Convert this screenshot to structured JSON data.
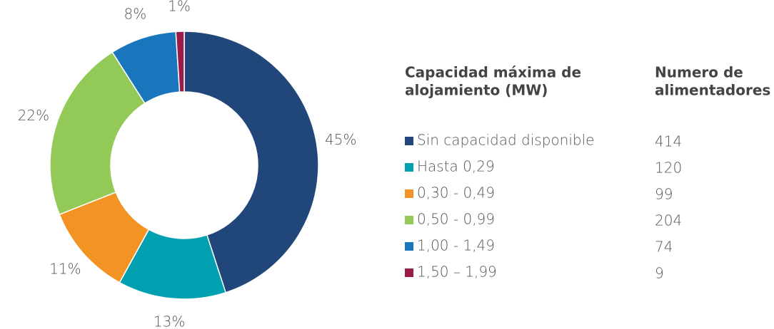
{
  "chart_data": {
    "type": "donut",
    "categories": [
      "Sin capacidad disponible",
      "Hasta 0,29",
      "0,30 - 0,49",
      "0,50 - 0,99",
      "1,00 - 1,49",
      "1,50 – 1,99"
    ],
    "values": [
      45,
      13,
      11,
      22,
      8,
      1
    ],
    "value_labels": [
      "45%",
      "13%",
      "11%",
      "22%",
      "8%",
      "1%"
    ],
    "colors": [
      "#21477a",
      "#00a0b0",
      "#f39323",
      "#92c957",
      "#1a76bc",
      "#9b1b4a"
    ],
    "legend_headers": [
      [
        "Capacidad máxima de",
        "alojamiento (MW)"
      ],
      [
        "Numero de",
        "alimentadores"
      ]
    ],
    "counts": [
      "414",
      "120",
      "99",
      "204",
      "74",
      "9"
    ]
  }
}
